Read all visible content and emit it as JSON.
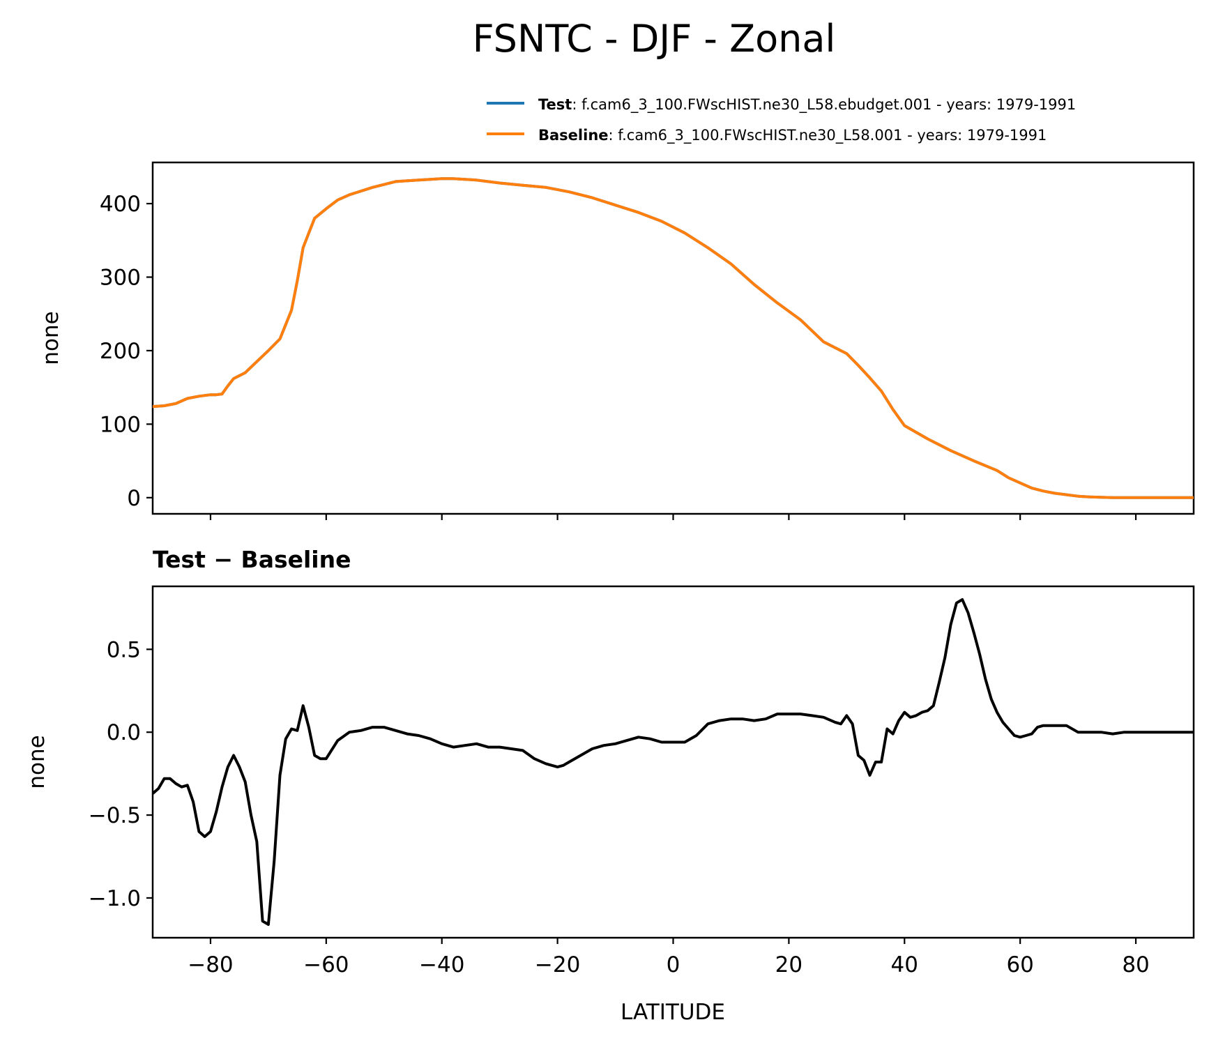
{
  "figure": {
    "title": "FSNTC - DJF - Zonal"
  },
  "legend": {
    "entries": [
      {
        "label": "Test",
        "desc": ": f.cam6_3_100.FWscHIST.ne30_L58.ebudget.001 - years: 1979-1991",
        "color": "#1f77b4"
      },
      {
        "label": "Baseline",
        "desc": ": f.cam6_3_100.FWscHIST.ne30_L58.001 - years: 1979-1991",
        "color": "#ff7f0e"
      }
    ]
  },
  "colors": {
    "test": "#1f77b4",
    "baseline": "#ff7f0e",
    "diff": "#000000"
  },
  "chart_data": [
    {
      "type": "line",
      "title": "FSNTC - DJF - Zonal",
      "xlabel": "",
      "ylabel": "none",
      "xlim": [
        -90,
        90
      ],
      "ylim": [
        -22,
        456
      ],
      "yticks": [
        0,
        100,
        200,
        300,
        400
      ],
      "ytick_labels": [
        "0",
        "100",
        "200",
        "300",
        "400"
      ],
      "xticks": [
        -80,
        -60,
        -40,
        -20,
        0,
        20,
        40,
        60,
        80
      ],
      "grid": false,
      "legend": "top-right",
      "x": [
        -90,
        -88,
        -86,
        -84,
        -82,
        -80,
        -79,
        -78,
        -77,
        -76,
        -75,
        -74,
        -72,
        -70,
        -68,
        -66,
        -65,
        -64,
        -63,
        -62,
        -60,
        -58,
        -56,
        -52,
        -48,
        -44,
        -40,
        -38,
        -36,
        -34,
        -30,
        -26,
        -22,
        -18,
        -14,
        -10,
        -6,
        -2,
        2,
        6,
        10,
        14,
        18,
        22,
        26,
        30,
        32,
        34,
        36,
        38,
        40,
        44,
        48,
        52,
        56,
        58,
        60,
        62,
        64,
        66,
        68,
        70,
        72,
        76,
        80,
        84,
        88,
        90
      ],
      "series": [
        {
          "name": "Test",
          "values": [
            124,
            125,
            128,
            135,
            138,
            140,
            140,
            141,
            152,
            162,
            166,
            170,
            185,
            200,
            216,
            255,
            295,
            340,
            360,
            380,
            393,
            405,
            412,
            422,
            430,
            432,
            434,
            434,
            433,
            432,
            428,
            425,
            422,
            416,
            408,
            398,
            388,
            376,
            360,
            340,
            318,
            290,
            265,
            242,
            212,
            196,
            180,
            163,
            145,
            120,
            98,
            80,
            64,
            50,
            37,
            27,
            20,
            13,
            9,
            6,
            4,
            2,
            1,
            0,
            0,
            0,
            0,
            0
          ]
        },
        {
          "name": "Baseline",
          "values": [
            124,
            125,
            128,
            135,
            138,
            140,
            140,
            141,
            152,
            162,
            166,
            170,
            185,
            200,
            216,
            255,
            295,
            340,
            360,
            380,
            393,
            405,
            412,
            422,
            430,
            432,
            434,
            434,
            433,
            432,
            428,
            425,
            422,
            416,
            408,
            398,
            388,
            376,
            360,
            340,
            318,
            290,
            265,
            242,
            212,
            196,
            180,
            163,
            145,
            120,
            98,
            80,
            64,
            50,
            37,
            27,
            20,
            13,
            9,
            6,
            4,
            2,
            1,
            0,
            0,
            0,
            0,
            0
          ]
        }
      ]
    },
    {
      "type": "line",
      "title": "Test − Baseline",
      "xlabel": "LATITUDE",
      "ylabel": "none",
      "xlim": [
        -90,
        90
      ],
      "ylim": [
        -1.24,
        0.88
      ],
      "yticks": [
        -1.0,
        -0.5,
        0.0,
        0.5
      ],
      "ytick_labels": [
        "−1.0",
        "−0.5",
        "0.0",
        "0.5"
      ],
      "xticks": [
        -80,
        -60,
        -40,
        -20,
        0,
        20,
        40,
        60,
        80
      ],
      "xtick_labels": [
        "−80",
        "−60",
        "−40",
        "−20",
        "0",
        "20",
        "40",
        "60",
        "80"
      ],
      "grid": false,
      "x": [
        -90,
        -89,
        -88,
        -87,
        -86,
        -85,
        -84,
        -83,
        -82,
        -81,
        -80,
        -79,
        -78,
        -77,
        -76,
        -75,
        -74,
        -73,
        -72,
        -71,
        -70,
        -69,
        -68,
        -67,
        -66,
        -65,
        -64,
        -63,
        -62,
        -61,
        -60,
        -58,
        -56,
        -54,
        -52,
        -50,
        -48,
        -46,
        -44,
        -42,
        -40,
        -38,
        -36,
        -34,
        -32,
        -30,
        -28,
        -26,
        -24,
        -22,
        -20,
        -19,
        -18,
        -16,
        -14,
        -12,
        -10,
        -8,
        -6,
        -4,
        -2,
        0,
        2,
        4,
        6,
        8,
        10,
        12,
        14,
        16,
        18,
        20,
        22,
        24,
        26,
        28,
        29,
        30,
        31,
        32,
        33,
        34,
        35,
        36,
        37,
        38,
        39,
        40,
        41,
        42,
        43,
        44,
        45,
        46,
        47,
        48,
        49,
        50,
        51,
        52,
        53,
        54,
        55,
        56,
        57,
        58,
        59,
        60,
        61,
        62,
        63,
        64,
        66,
        68,
        70,
        72,
        74,
        76,
        78,
        80,
        82,
        84,
        86,
        88,
        90
      ],
      "series": [
        {
          "name": "",
          "values": [
            -0.37,
            -0.34,
            -0.28,
            -0.28,
            -0.31,
            -0.33,
            -0.32,
            -0.42,
            -0.6,
            -0.63,
            -0.6,
            -0.48,
            -0.33,
            -0.21,
            -0.14,
            -0.21,
            -0.3,
            -0.5,
            -0.66,
            -1.14,
            -1.16,
            -0.78,
            -0.26,
            -0.04,
            0.02,
            0.01,
            0.16,
            0.03,
            -0.14,
            -0.16,
            -0.16,
            -0.05,
            0.0,
            0.01,
            0.03,
            0.03,
            0.01,
            -0.01,
            -0.02,
            -0.04,
            -0.07,
            -0.09,
            -0.08,
            -0.07,
            -0.09,
            -0.09,
            -0.1,
            -0.11,
            -0.16,
            -0.19,
            -0.21,
            -0.2,
            -0.18,
            -0.14,
            -0.1,
            -0.08,
            -0.07,
            -0.05,
            -0.03,
            -0.04,
            -0.06,
            -0.06,
            -0.06,
            -0.02,
            0.05,
            0.07,
            0.08,
            0.08,
            0.07,
            0.08,
            0.11,
            0.11,
            0.11,
            0.1,
            0.09,
            0.06,
            0.05,
            0.1,
            0.05,
            -0.14,
            -0.17,
            -0.26,
            -0.18,
            -0.18,
            0.02,
            -0.01,
            0.07,
            0.12,
            0.09,
            0.1,
            0.12,
            0.13,
            0.16,
            0.3,
            0.45,
            0.65,
            0.78,
            0.8,
            0.72,
            0.6,
            0.47,
            0.32,
            0.2,
            0.12,
            0.06,
            0.02,
            -0.02,
            -0.03,
            -0.02,
            -0.01,
            0.03,
            0.04,
            0.04,
            0.04,
            0.0,
            0.0,
            0.0,
            -0.01,
            0.0,
            0.0,
            0.0,
            0.0,
            0.0,
            0.0,
            0.0
          ]
        }
      ]
    }
  ]
}
